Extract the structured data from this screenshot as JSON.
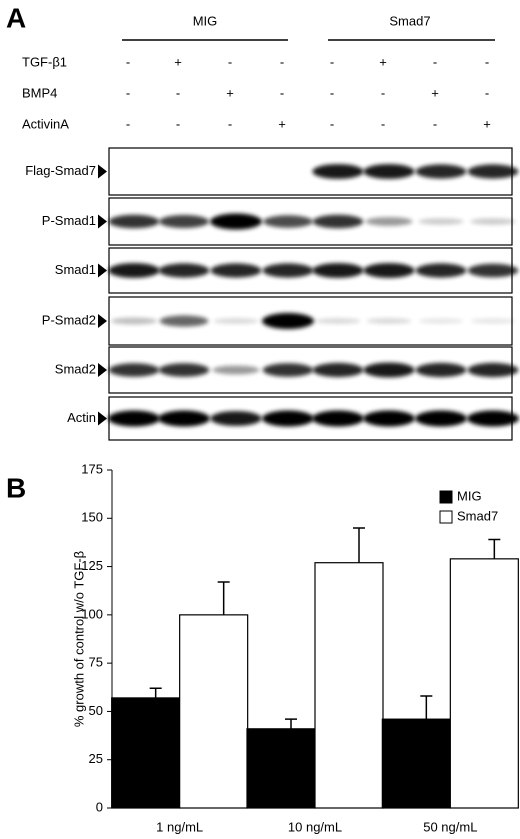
{
  "panel_labels": [
    "A",
    "B"
  ],
  "blot": {
    "groups": [
      "MIG",
      "Smad7"
    ],
    "treatments": [
      {
        "name": "TGF-β1",
        "signs": [
          "-",
          "+",
          "-",
          "-",
          "-",
          "+",
          "-",
          "-"
        ]
      },
      {
        "name": "BMP4",
        "signs": [
          "-",
          "-",
          "+",
          "-",
          "-",
          "-",
          "+",
          "-"
        ]
      },
      {
        "name": "ActivinA",
        "signs": [
          "-",
          "-",
          "-",
          "+",
          "-",
          "-",
          "-",
          "+"
        ]
      }
    ],
    "rows": [
      "Flag-Smad7",
      "P-Smad1",
      "Smad1",
      "P-Smad2",
      "Smad2",
      "Actin"
    ]
  },
  "chart_data": {
    "type": "bar",
    "ylabel": "% growth of control w/o TGF-β",
    "categories": [
      "1 ng/mL",
      "10 ng/mL",
      "50 ng/mL"
    ],
    "series": [
      {
        "name": "MIG",
        "color": "#000000",
        "values": [
          57,
          41,
          46
        ],
        "errors": [
          5,
          5,
          12
        ]
      },
      {
        "name": "Smad7",
        "color": "#ffffff",
        "values": [
          100,
          127,
          129
        ],
        "errors": [
          17,
          18,
          10
        ]
      }
    ],
    "ylim": [
      0,
      175
    ],
    "yticks": [
      0,
      25,
      50,
      75,
      100,
      125,
      150,
      175
    ],
    "legend": "upper right"
  }
}
